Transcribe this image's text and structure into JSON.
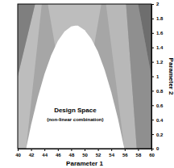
{
  "chart_data": {
    "type": "contour",
    "xlabel": "Parameter 1",
    "ylabel": "Parameter 2",
    "xlim": [
      40,
      60
    ],
    "ylim": [
      0,
      2
    ],
    "xticks": [
      40,
      42,
      44,
      46,
      48,
      50,
      52,
      54,
      56,
      58,
      60
    ],
    "yticks": [
      0,
      0.2,
      0.4,
      0.6,
      0.8,
      1,
      1.2,
      1.4,
      1.6,
      1.8,
      2
    ],
    "series": [
      {
        "type": "area",
        "color": "#a6a6a6",
        "x": [
          40,
          60,
          60,
          40
        ],
        "values": [
          0,
          0,
          2,
          2
        ]
      },
      {
        "type": "area",
        "color": "#bdbdbd",
        "x": [
          40,
          41.25,
          43.6,
          42.6,
          40
        ],
        "values": [
          0,
          0,
          2,
          2,
          1.0
        ]
      },
      {
        "type": "area",
        "color": "#7f7f7f",
        "x": [
          40,
          40,
          42.6
        ],
        "values": [
          1.0,
          2,
          2
        ]
      },
      {
        "type": "area",
        "color": "#bdbdbd",
        "x": [
          44.5,
          52.5,
          51,
          46
        ],
        "values": [
          2,
          2,
          1.2,
          1.2
        ]
      },
      {
        "type": "area",
        "color": "#b8b8b8",
        "x": [
          53.2,
          56.2,
          57.8,
          55.95
        ],
        "values": [
          2,
          2,
          0,
          0
        ]
      },
      {
        "type": "area",
        "color": "#8f8f8f",
        "x": [
          56.2,
          58,
          60,
          60,
          57.8
        ],
        "values": [
          2,
          2,
          1.0,
          0,
          0
        ]
      },
      {
        "type": "area",
        "color": "#6e6e6e",
        "x": [
          58,
          60,
          60
        ],
        "values": [
          2,
          2,
          1.0
        ]
      },
      {
        "type": "area",
        "color": "#ffffff",
        "x": [
          41.25,
          42,
          43,
          44,
          45,
          46,
          47,
          48,
          48.6,
          49,
          50,
          51,
          52,
          53,
          54,
          55,
          55.95
        ],
        "values": [
          0,
          0.33,
          0.71,
          1.03,
          1.29,
          1.49,
          1.62,
          1.69,
          1.7,
          1.7,
          1.64,
          1.52,
          1.34,
          1.09,
          0.78,
          0.41,
          0
        ]
      }
    ],
    "annotations": [
      {
        "text": "Design Space",
        "x": 48.6,
        "y": 0.5
      },
      {
        "text": "(non-linear combination)",
        "x": 48.6,
        "y": 0.38
      }
    ]
  }
}
